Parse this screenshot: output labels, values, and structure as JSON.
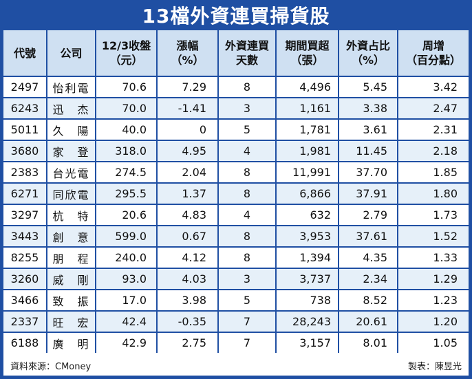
{
  "title": "13檔外資連買掃貨股",
  "headers": [
    [
      "代號"
    ],
    [
      "公司"
    ],
    [
      "12/3收盤",
      "（元）"
    ],
    [
      "漲幅",
      "（%）"
    ],
    [
      "外資連買",
      "天數"
    ],
    [
      "期間買超",
      "（張）"
    ],
    [
      "外資占比",
      "（%）"
    ],
    [
      "周增",
      "（百分點）"
    ]
  ],
  "rows": [
    [
      "2497",
      "怡利電",
      "70.6",
      "7.29",
      "8",
      "4,496",
      "5.45",
      "3.42"
    ],
    [
      "6243",
      "迅　杰",
      "70.0",
      "-1.41",
      "3",
      "1,161",
      "3.38",
      "2.47"
    ],
    [
      "5011",
      "久　陽",
      "40.0",
      "0",
      "5",
      "1,781",
      "3.61",
      "2.31"
    ],
    [
      "3680",
      "家　登",
      "318.0",
      "4.95",
      "4",
      "1,981",
      "11.45",
      "2.18"
    ],
    [
      "2383",
      "台光電",
      "274.5",
      "2.04",
      "8",
      "11,991",
      "37.70",
      "1.85"
    ],
    [
      "6271",
      "同欣電",
      "295.5",
      "1.37",
      "8",
      "6,866",
      "37.91",
      "1.80"
    ],
    [
      "3297",
      "杭　特",
      "20.6",
      "4.83",
      "4",
      "632",
      "2.79",
      "1.73"
    ],
    [
      "3443",
      "創　意",
      "599.0",
      "0.67",
      "8",
      "3,953",
      "37.61",
      "1.52"
    ],
    [
      "8255",
      "朋　程",
      "240.0",
      "4.12",
      "8",
      "1,394",
      "4.35",
      "1.33"
    ],
    [
      "3260",
      "威　剛",
      "93.0",
      "4.03",
      "3",
      "3,737",
      "2.34",
      "1.29"
    ],
    [
      "3466",
      "致　振",
      "17.0",
      "3.98",
      "5",
      "738",
      "8.52",
      "1.23"
    ],
    [
      "2337",
      "旺　宏",
      "42.4",
      "-0.35",
      "7",
      "28,243",
      "20.61",
      "1.20"
    ],
    [
      "6188",
      "廣　明",
      "42.9",
      "2.75",
      "7",
      "3,157",
      "8.01",
      "1.05"
    ]
  ],
  "footer": {
    "source": "資料來源：CMoney",
    "credit": "製表：陳昱光"
  },
  "colors": {
    "frame": "#1f4fa3",
    "header_bg": "#cfe0f2",
    "alt_row_bg": "#e6f0f9"
  }
}
